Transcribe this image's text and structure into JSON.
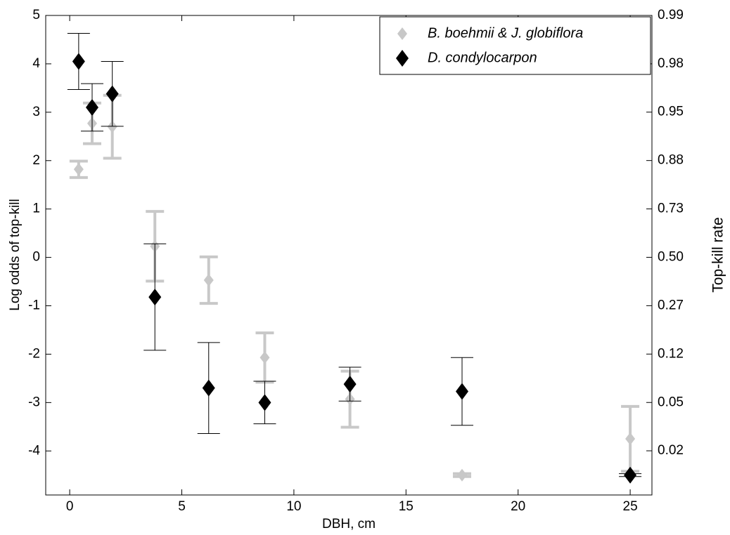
{
  "chart_data": {
    "type": "scatter",
    "x_label": "DBH, cm",
    "y_label": "Log odds of top-kill",
    "y2_label": "Top-kill rate",
    "xlim": [
      -1.07,
      25.97
    ],
    "ylim": [
      -4.91,
      5
    ],
    "xticks": [
      0,
      5,
      10,
      15,
      20,
      25
    ],
    "yticks": [
      -4,
      -3,
      -2,
      -1,
      0,
      1,
      2,
      3,
      4,
      5
    ],
    "y2scale": "logit",
    "y2lim": [
      0.0073,
      0.9933
    ],
    "y2ticks": [
      {
        "value": 0.018,
        "label": "0.02"
      },
      {
        "value": 0.0474,
        "label": "0.05"
      },
      {
        "value": 0.1192,
        "label": "0.12"
      },
      {
        "value": 0.2689,
        "label": "0.27"
      },
      {
        "value": 0.5,
        "label": "0.50"
      },
      {
        "value": 0.7311,
        "label": "0.73"
      },
      {
        "value": 0.8808,
        "label": "0.88"
      },
      {
        "value": 0.9526,
        "label": "0.95"
      },
      {
        "value": 0.982,
        "label": "0.98"
      },
      {
        "value": 0.9933,
        "label": "0.99"
      }
    ],
    "legend": "upper right",
    "series": [
      {
        "name": "B. boehmii & J. globiflora",
        "color": "#c8c8c8",
        "x": [
          0.4,
          1.0,
          1.9,
          3.8,
          6.2,
          8.7,
          12.5,
          17.5,
          25
        ],
        "values": [
          1.82,
          2.77,
          2.7,
          0.23,
          -0.47,
          -2.07,
          -2.93,
          -4.5,
          -3.75
        ],
        "errors": [
          0.17,
          0.42,
          0.65,
          0.72,
          0.48,
          0.51,
          0.58,
          0.03,
          0.67
        ]
      },
      {
        "name": "D. condylocarpon",
        "color": "#000000",
        "x": [
          0.4,
          1.0,
          1.9,
          3.8,
          6.2,
          8.7,
          12.5,
          17.5,
          25
        ],
        "values": [
          4.05,
          3.1,
          3.38,
          -0.82,
          -2.7,
          -3.0,
          -2.62,
          -2.77,
          -4.5
        ],
        "errors": [
          0.58,
          0.49,
          0.67,
          1.1,
          0.94,
          0.44,
          0.35,
          0.7,
          0.03
        ]
      }
    ]
  }
}
